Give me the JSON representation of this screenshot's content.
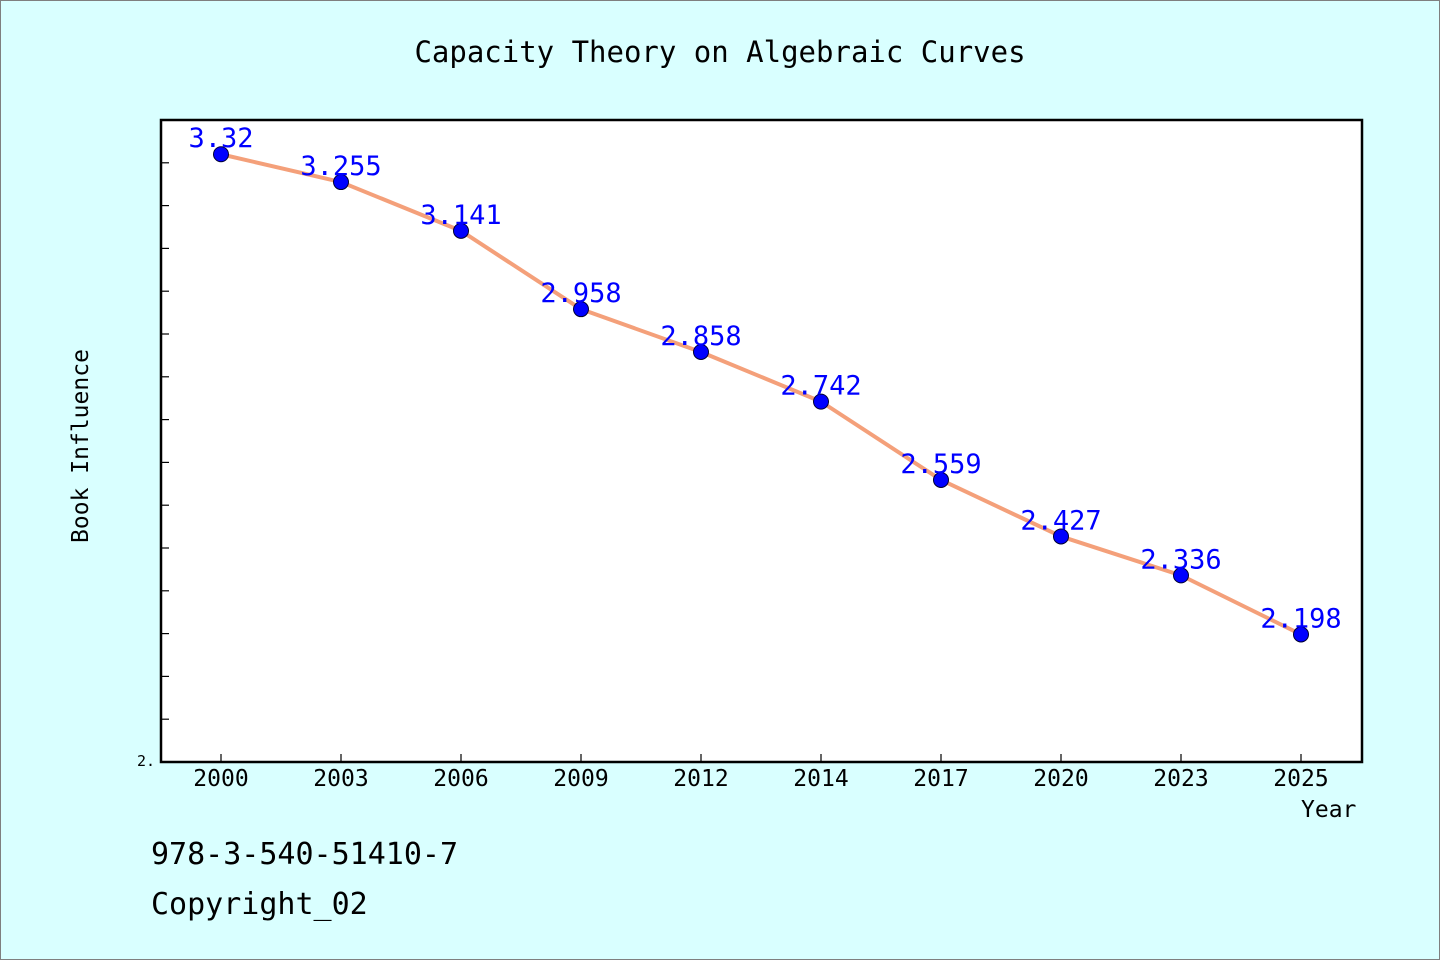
{
  "chart_data": {
    "type": "line",
    "title": "Capacity Theory on Algebraic Curves",
    "xlabel": "Year",
    "ylabel": "Book Influence",
    "categories": [
      "2000",
      "2003",
      "2006",
      "2009",
      "2012",
      "2014",
      "2017",
      "2020",
      "2023",
      "2025"
    ],
    "values": [
      3.32,
      3.255,
      3.141,
      2.958,
      2.858,
      2.742,
      2.559,
      2.427,
      2.336,
      2.198
    ],
    "data_labels": [
      "3.32",
      "3.255",
      "3.141",
      "2.958",
      "2.858",
      "2.742",
      "2.559",
      "2.427",
      "2.336",
      "2.198"
    ],
    "ylim": [
      1.9,
      3.4
    ],
    "y_tick_label": "2.",
    "grid": false,
    "legend": "none",
    "colors": {
      "line": "#f4a07a",
      "marker": "#0000ff",
      "label": "#0000ff",
      "background": "#d9ffff",
      "plot_bg": "#ffffff"
    }
  },
  "footer": {
    "isbn": "978-3-540-51410-7",
    "copyright": "Copyright_02"
  }
}
